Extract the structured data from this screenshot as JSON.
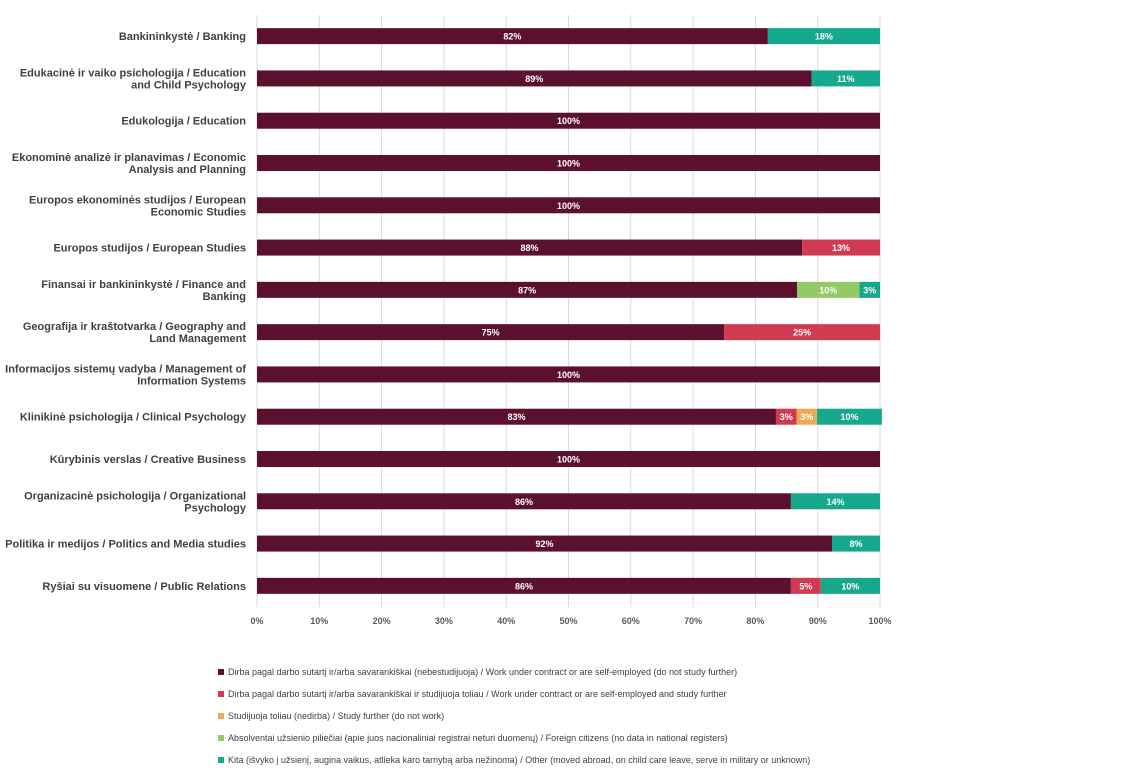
{
  "chart_data": {
    "type": "bar",
    "orientation": "horizontal",
    "stacked": true,
    "categories": [
      [
        "Bankininkystė / Banking"
      ],
      [
        "Edukacinė ir vaiko psichologija / Education",
        "and Child Psychology"
      ],
      [
        "Edukologija / Education"
      ],
      [
        "Ekonominė analizė ir planavimas / Economic",
        "Analysis and Planning"
      ],
      [
        "Europos ekonominės studijos / European",
        "Economic Studies"
      ],
      [
        "Europos studijos / European Studies"
      ],
      [
        "Finansai ir bankininkystė / Finance and",
        "Banking"
      ],
      [
        "Geografija ir kraštotvarka / Geography and",
        "Land Management"
      ],
      [
        "Informacijos sistemų vadyba / Management of",
        "Information Systems"
      ],
      [
        "Klinikinė psichologija / Clinical Psychology"
      ],
      [
        "Kūrybinis verslas / Creative Business"
      ],
      [
        "Organizacinė psichologija / Organizational",
        "Psychology"
      ],
      [
        "Politika ir medijos / Politics and Media studies"
      ],
      [
        "Ryšiai su visuomene / Public Relations"
      ]
    ],
    "series": [
      {
        "name": "Dirba pagal darbo sutartį ir/arba savarankiškai (nebestudijuoja) / Work under contract or are self-employed (do not study further)",
        "color": "#5c1030",
        "values": [
          82,
          89,
          100,
          100,
          100,
          87.5,
          86.7,
          75,
          100,
          83.3,
          100,
          85.7,
          92.3,
          85.7
        ],
        "labels": [
          "82%",
          "89%",
          "100%",
          "100%",
          "100%",
          "88%",
          "87%",
          "75%",
          "100%",
          "83%",
          "100%",
          "86%",
          "92%",
          "86%"
        ]
      },
      {
        "name": "Dirba pagal darbo sutartį ir/arba savarankiškai  ir studijuoja toliau / Work under contract or are self-employed and study further",
        "color": "#d23a52",
        "values": [
          0,
          0,
          0,
          0,
          0,
          12.5,
          0,
          25,
          0,
          3.3,
          0,
          0,
          0,
          4.8
        ],
        "labels": [
          "",
          "",
          "",
          "",
          "",
          "13%",
          "",
          "25%",
          "",
          "3%",
          "",
          "",
          "",
          "5%"
        ]
      },
      {
        "name": "Studijuoja toliau (nedirba) / Study further (do not work)",
        "color": "#eba857",
        "values": [
          0,
          0,
          0,
          0,
          0,
          0,
          0,
          0,
          0,
          3.3,
          0,
          0,
          0,
          0
        ],
        "labels": [
          "",
          "",
          "",
          "",
          "",
          "",
          "",
          "",
          "",
          "3%",
          "",
          "",
          "",
          ""
        ]
      },
      {
        "name": "Absolventai užsienio piliečiai (apie juos nacionaliniai registrai neturi duomenų) / Foreign citizens (no data in national registers)",
        "color": "#95c866",
        "values": [
          0,
          0,
          0,
          0,
          0,
          0,
          10,
          0,
          0,
          0,
          0,
          0,
          0,
          0
        ],
        "labels": [
          "",
          "",
          "",
          "",
          "",
          "",
          "10%",
          "",
          "",
          "",
          "",
          "",
          "",
          ""
        ]
      },
      {
        "name": "Kita (išvyko į užsienį, augina vaikus, atlieka karo tarnybą arba nežinoma) / Other (moved abroad, on child care leave, serve in military or unknown)",
        "color": "#16a88c",
        "values": [
          18,
          11,
          0,
          0,
          0,
          0,
          3.3,
          0,
          0,
          10.4,
          0,
          14.3,
          7.7,
          9.5
        ],
        "labels": [
          "18%",
          "11%",
          "",
          "",
          "",
          "",
          "3%",
          "",
          "",
          "10%",
          "",
          "14%",
          "8%",
          "10%"
        ]
      }
    ],
    "xlim": [
      0,
      100
    ],
    "xticks": [
      "0%",
      "10%",
      "20%",
      "30%",
      "40%",
      "50%",
      "60%",
      "70%",
      "80%",
      "90%",
      "100%"
    ],
    "title": "",
    "xlabel": "",
    "ylabel": "",
    "legend_position": "bottom",
    "grid": true
  }
}
